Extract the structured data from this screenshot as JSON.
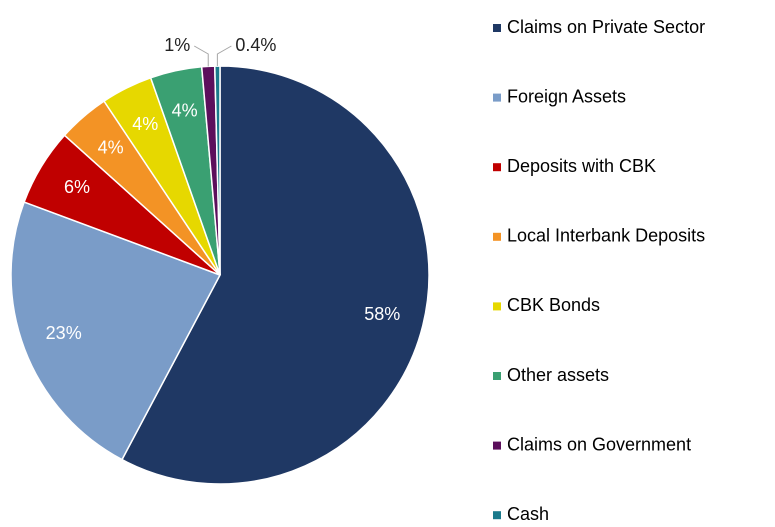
{
  "chart_data": {
    "type": "pie",
    "categories": [
      "Claims on Private Sector",
      "Foreign Assets",
      "Deposits with CBK",
      "Local Interbank Deposits",
      "CBK Bonds",
      "Other assets",
      "Claims on Government",
      "Cash"
    ],
    "values": [
      58,
      23,
      6,
      4,
      4,
      4,
      1,
      0.4
    ],
    "value_labels": [
      "58%",
      "23%",
      "6%",
      "4%",
      "4%",
      "4%",
      "1%",
      "0.4%"
    ],
    "colors": [
      "#1f3864",
      "#7a9cc8",
      "#c00000",
      "#f39325",
      "#e6d800",
      "#3aa072",
      "#5c0f5c",
      "#1a7a8c"
    ],
    "legend": "right"
  }
}
